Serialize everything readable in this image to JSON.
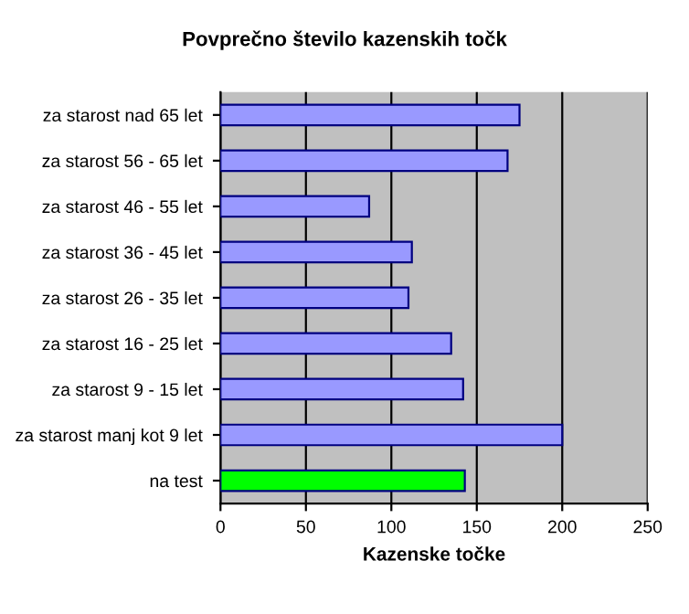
{
  "chart_data": {
    "type": "bar",
    "orientation": "horizontal",
    "title": "Povprečno število kazenskih točk",
    "xlabel": "Kazenske točke",
    "categories": [
      "za starost nad 65 let",
      "za starost 56 - 65 let",
      "za starost 46 - 55 let",
      "za starost 36 - 45 let",
      "za starost 26 - 35 let",
      "za starost 16 - 25 let",
      "za starost 9 - 15 let",
      "za starost manj kot 9 let",
      "na test"
    ],
    "values": [
      175,
      168,
      87,
      112,
      110,
      135,
      142,
      200,
      143
    ],
    "colors": [
      "#9999ff",
      "#9999ff",
      "#9999ff",
      "#9999ff",
      "#9999ff",
      "#9999ff",
      "#9999ff",
      "#9999ff",
      "#00ff00"
    ],
    "xlim": [
      0,
      250
    ],
    "xticks": [
      0,
      50,
      100,
      150,
      200,
      250
    ],
    "grid": "x"
  }
}
